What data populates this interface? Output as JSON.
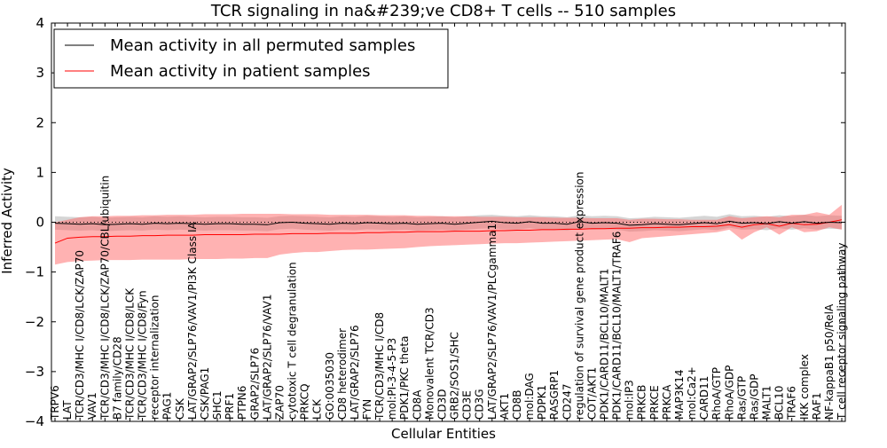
{
  "chart_data": {
    "type": "line",
    "title": "TCR signaling in na&#239;ve CD8+ T cells -- 510 samples",
    "xlabel": "Cellular Entities",
    "ylabel": "Inferred Activity",
    "ylim": [
      -4,
      4
    ],
    "yticks": [
      4,
      3,
      2,
      1,
      0,
      -1,
      -2,
      -3,
      -4
    ],
    "ytick_labels": [
      "4",
      "3",
      "2",
      "1",
      "0",
      "−1",
      "−2",
      "−3",
      "−4"
    ],
    "grid": false,
    "zero_line": "dotted",
    "legend": {
      "placement": "top-left",
      "entries": [
        {
          "label": "Mean activity in all permuted samples",
          "color": "#000000"
        },
        {
          "label": "Mean activity in patient samples",
          "color": "#ff0000"
        }
      ]
    },
    "categories": [
      "TRPV6",
      "LAT",
      "TCR/CD3/MHC I/CD8/LCK/ZAP70",
      "VAV1",
      "TCR/CD3/MHC I/CD8/LCK/ZAP70/CBL/ubiquitin",
      "B7 family/CD28",
      "TCR/CD3/MHC I/CD8/LCK",
      "TCR/CD3/MHC I/CD8/Fyn",
      "receptor internalization",
      "PAG1",
      "CSK",
      "LAT/GRAP2/SLP76/VAV1/PI3K Class IA",
      "CSK/PAG1",
      "SHC1",
      "PRF1",
      "PTPN6",
      "GRAP2/SLP76",
      "LAT/GRAP2/SLP76/VAV1",
      "ZAP70",
      "cytotoxic T cell degranulation",
      "PRKCQ",
      "LCK",
      "GO:0035030",
      "CD8 heterodimer",
      "LAT/GRAP2/SLP76",
      "FYN",
      "TCR/CD3/MHC I/CD8",
      "mol:PI-3-4-5-P3",
      "PDK1/PKC theta",
      "CD8A",
      "Monovalent TCR/CD3",
      "CD3D",
      "GRB2/SOS1/SHC",
      "CD3E",
      "CD3G",
      "LAT/GRAP2/SLP76/VAV1/PLCgamma1",
      "AKT1",
      "CD8B",
      "mol:DAG",
      "PDPK1",
      "RASGRP1",
      "CD247",
      "regulation of survival gene product expression",
      "COT/AKT1",
      "PDK1/CARD11/BCL10/MALT1",
      "PDK1/CARD11/BCL10/MALT1/TRAF6",
      "mol:IP3",
      "PRKCB",
      "PRKCE",
      "PRKCA",
      "MAP3K14",
      "mol:Ca2+",
      "CARD11",
      "RhoA/GTP",
      "RhoA/GDP",
      "Ras/GTP",
      "Ras/GDP",
      "MALT1",
      "BCL10",
      "TRAF6",
      "IKK complex",
      "RAF1",
      "NF-kappaB1 p50/RelA",
      "T cell receptor signaling pathway"
    ],
    "series": [
      {
        "name": "Mean activity in all permuted samples",
        "color": "#000000",
        "values": [
          -0.02,
          -0.03,
          -0.04,
          -0.03,
          -0.05,
          -0.04,
          -0.03,
          -0.04,
          -0.02,
          -0.03,
          -0.02,
          -0.03,
          -0.04,
          -0.03,
          -0.03,
          -0.04,
          -0.04,
          -0.05,
          -0.01,
          0.0,
          -0.02,
          -0.03,
          -0.04,
          -0.02,
          -0.03,
          -0.01,
          -0.02,
          -0.03,
          -0.02,
          -0.04,
          -0.03,
          -0.02,
          -0.04,
          -0.02,
          0.0,
          0.02,
          -0.01,
          -0.02,
          0.01,
          -0.02,
          -0.02,
          -0.04,
          0.01,
          -0.02,
          -0.01,
          -0.02,
          -0.06,
          -0.05,
          -0.03,
          -0.04,
          -0.05,
          -0.03,
          -0.01,
          -0.03,
          0.02,
          -0.02,
          -0.01,
          -0.03,
          0.01,
          -0.02,
          0.01,
          -0.02,
          0.0,
          -0.01
        ],
        "lower": [
          -0.15,
          -0.16,
          -0.17,
          -0.16,
          -0.18,
          -0.17,
          -0.16,
          -0.17,
          -0.15,
          -0.16,
          -0.15,
          -0.16,
          -0.17,
          -0.16,
          -0.16,
          -0.17,
          -0.17,
          -0.18,
          -0.14,
          -0.13,
          -0.15,
          -0.16,
          -0.17,
          -0.15,
          -0.16,
          -0.14,
          -0.15,
          -0.16,
          -0.15,
          -0.17,
          -0.16,
          -0.15,
          -0.17,
          -0.15,
          -0.13,
          -0.12,
          -0.14,
          -0.15,
          -0.12,
          -0.15,
          -0.15,
          -0.17,
          -0.12,
          -0.15,
          -0.14,
          -0.15,
          -0.19,
          -0.18,
          -0.16,
          -0.17,
          -0.18,
          -0.16,
          -0.14,
          -0.16,
          -0.11,
          -0.15,
          -0.14,
          -0.16,
          -0.12,
          -0.15,
          -0.12,
          -0.15,
          -0.13,
          -0.14
        ],
        "upper": [
          0.12,
          0.11,
          0.1,
          0.11,
          0.09,
          0.1,
          0.11,
          0.1,
          0.12,
          0.11,
          0.12,
          0.11,
          0.1,
          0.11,
          0.11,
          0.1,
          0.1,
          0.09,
          0.12,
          0.13,
          0.12,
          0.11,
          0.1,
          0.12,
          0.11,
          0.13,
          0.12,
          0.11,
          0.12,
          0.1,
          0.11,
          0.12,
          0.1,
          0.12,
          0.14,
          0.15,
          0.13,
          0.12,
          0.14,
          0.12,
          0.12,
          0.1,
          0.14,
          0.12,
          0.13,
          0.12,
          0.08,
          0.09,
          0.11,
          0.1,
          0.09,
          0.11,
          0.13,
          0.11,
          0.16,
          0.12,
          0.13,
          0.11,
          0.14,
          0.12,
          0.15,
          0.12,
          0.14,
          0.13
        ]
      },
      {
        "name": "Mean activity in patient samples",
        "color": "#ff0000",
        "values": [
          -0.42,
          -0.32,
          -0.3,
          -0.29,
          -0.29,
          -0.28,
          -0.28,
          -0.27,
          -0.27,
          -0.26,
          -0.26,
          -0.26,
          -0.25,
          -0.25,
          -0.25,
          -0.25,
          -0.24,
          -0.24,
          -0.24,
          -0.23,
          -0.23,
          -0.23,
          -0.22,
          -0.22,
          -0.22,
          -0.21,
          -0.21,
          -0.2,
          -0.2,
          -0.19,
          -0.19,
          -0.19,
          -0.18,
          -0.18,
          -0.18,
          -0.17,
          -0.17,
          -0.16,
          -0.16,
          -0.15,
          -0.15,
          -0.14,
          -0.14,
          -0.13,
          -0.13,
          -0.12,
          -0.12,
          -0.11,
          -0.11,
          -0.1,
          -0.1,
          -0.09,
          -0.09,
          -0.08,
          -0.05,
          -0.1,
          -0.05,
          -0.03,
          -0.08,
          -0.02,
          -0.05,
          -0.04,
          0.0,
          0.05
        ],
        "lower": [
          -0.85,
          -0.8,
          -0.78,
          -0.77,
          -0.76,
          -0.76,
          -0.76,
          -0.75,
          -0.75,
          -0.75,
          -0.75,
          -0.74,
          -0.74,
          -0.74,
          -0.73,
          -0.73,
          -0.72,
          -0.72,
          -0.65,
          -0.62,
          -0.6,
          -0.6,
          -0.58,
          -0.56,
          -0.55,
          -0.55,
          -0.54,
          -0.53,
          -0.52,
          -0.5,
          -0.48,
          -0.47,
          -0.46,
          -0.45,
          -0.44,
          -0.43,
          -0.42,
          -0.42,
          -0.41,
          -0.4,
          -0.39,
          -0.38,
          -0.37,
          -0.36,
          -0.35,
          -0.34,
          -0.4,
          -0.32,
          -0.3,
          -0.28,
          -0.26,
          -0.24,
          -0.22,
          -0.2,
          -0.15,
          -0.35,
          -0.2,
          -0.1,
          -0.25,
          -0.1,
          -0.2,
          -0.18,
          -0.1,
          -0.15
        ],
        "upper": [
          0.0,
          0.05,
          0.1,
          0.12,
          0.12,
          0.13,
          0.13,
          0.14,
          0.14,
          0.15,
          0.15,
          0.15,
          0.16,
          0.16,
          0.16,
          0.17,
          0.17,
          0.17,
          0.17,
          0.16,
          0.16,
          0.16,
          0.15,
          0.15,
          0.15,
          0.15,
          0.14,
          0.14,
          0.14,
          0.13,
          0.13,
          0.12,
          0.12,
          0.12,
          0.11,
          0.11,
          0.11,
          0.1,
          0.1,
          0.1,
          0.09,
          0.09,
          0.09,
          0.08,
          0.08,
          0.08,
          0.05,
          0.07,
          0.07,
          0.06,
          0.06,
          0.05,
          0.05,
          0.05,
          0.12,
          0.08,
          0.1,
          0.12,
          0.1,
          0.15,
          0.15,
          0.2,
          0.15,
          0.35
        ]
      }
    ]
  }
}
